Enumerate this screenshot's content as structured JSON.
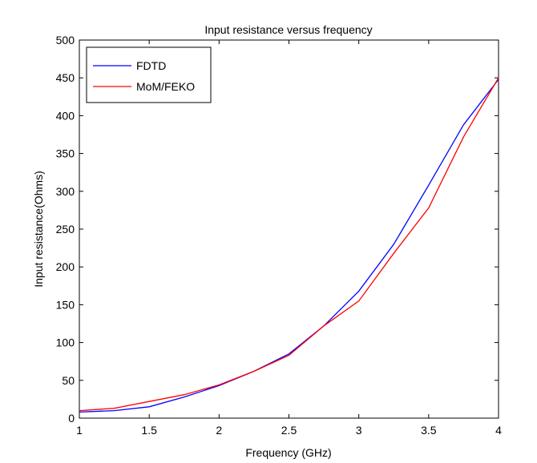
{
  "chart_data": {
    "type": "line",
    "title": "Input resistance versus frequency",
    "xlabel": "Frequency (GHz)",
    "ylabel": "Input resistance(Ohms)",
    "xlim": [
      1,
      4
    ],
    "ylim": [
      0,
      500
    ],
    "xticks": [
      1,
      1.5,
      2,
      2.5,
      3,
      3.5,
      4
    ],
    "yticks": [
      0,
      50,
      100,
      150,
      200,
      250,
      300,
      350,
      400,
      450,
      500
    ],
    "grid": false,
    "legend_position": "top-left",
    "series": [
      {
        "name": "FDTD",
        "color": "#0000ff",
        "x": [
          1.0,
          1.25,
          1.5,
          1.75,
          2.0,
          2.25,
          2.5,
          2.75,
          3.0,
          3.25,
          3.5,
          3.75,
          4.0
        ],
        "y": [
          8,
          10,
          15,
          28,
          43,
          62,
          85,
          122,
          168,
          230,
          308,
          388,
          448
        ]
      },
      {
        "name": "MoM/FEKO",
        "color": "#ff0000",
        "x": [
          1.0,
          1.25,
          1.5,
          1.75,
          2.0,
          2.25,
          2.5,
          2.75,
          3.0,
          3.25,
          3.5,
          3.75,
          4.0
        ],
        "y": [
          10,
          13,
          22,
          31,
          44,
          62,
          83,
          122,
          155,
          218,
          278,
          372,
          450
        ]
      }
    ]
  }
}
